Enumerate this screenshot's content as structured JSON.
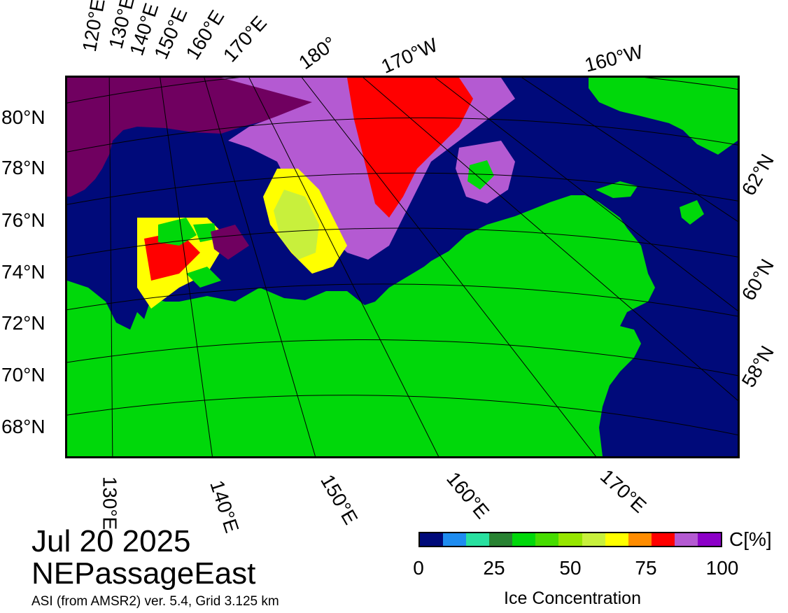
{
  "map": {
    "date": "Jul 20 2025",
    "region": "NEPassageEast",
    "source": "ASI (from AMSR2) ver. 5.4,  Grid 3.125 km",
    "colors": {
      "water": "#000a7a",
      "land": "#00d80a",
      "high_ice": "#700060",
      "grid": "#000000"
    }
  },
  "top_lon_labels": [
    "120°E",
    "130°E",
    "140°E",
    "150°E",
    "160°E",
    "170°E",
    "180°",
    "170°W",
    "160°W"
  ],
  "left_lat_labels": [
    "80°N",
    "78°N",
    "76°N",
    "74°N",
    "72°N",
    "70°N",
    "68°N"
  ],
  "right_lat_labels": [
    "62°N",
    "60°N",
    "58°N"
  ],
  "bottom_lon_labels": [
    "130°E",
    "140°E",
    "150°E",
    "160°E",
    "170°E"
  ],
  "legend": {
    "unit": "C[%]",
    "title": "Ice Concentration",
    "ticks": [
      "0",
      "25",
      "50",
      "75",
      "100"
    ],
    "colors": [
      "#000a7a",
      "#1e8cf0",
      "#28e0a0",
      "#288232",
      "#00d80a",
      "#46dc00",
      "#96e600",
      "#c8f03c",
      "#ffff00",
      "#ff8c00",
      "#ff0000",
      "#b45ad2",
      "#8c00c8"
    ]
  }
}
